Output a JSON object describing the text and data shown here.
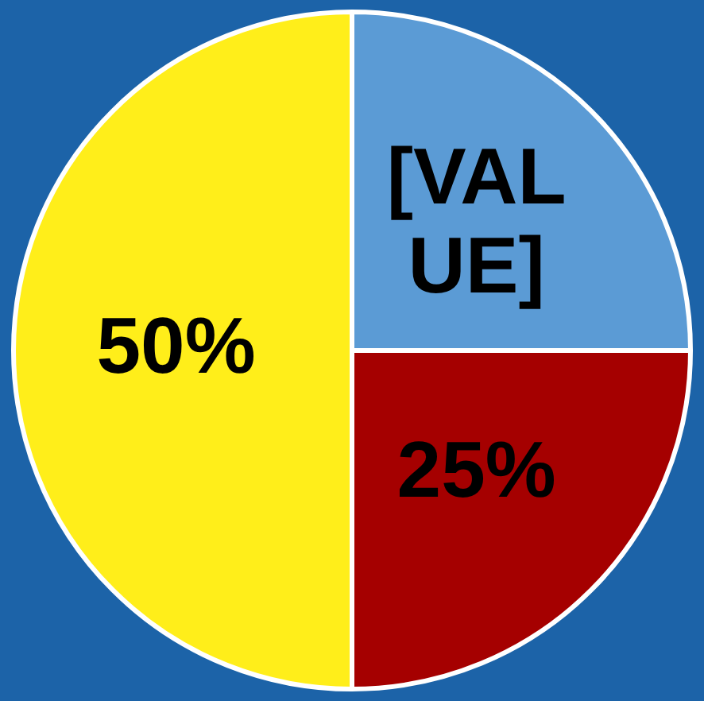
{
  "chart_data": {
    "type": "pie",
    "categories": [
      null,
      null,
      null
    ],
    "values": [
      25,
      25,
      50
    ],
    "colors": [
      "#5b9bd5",
      "#a50000",
      "#ffee1a"
    ],
    "value_labels": [
      "[VALUE]",
      "25%",
      "50%"
    ],
    "legend": false
  }
}
